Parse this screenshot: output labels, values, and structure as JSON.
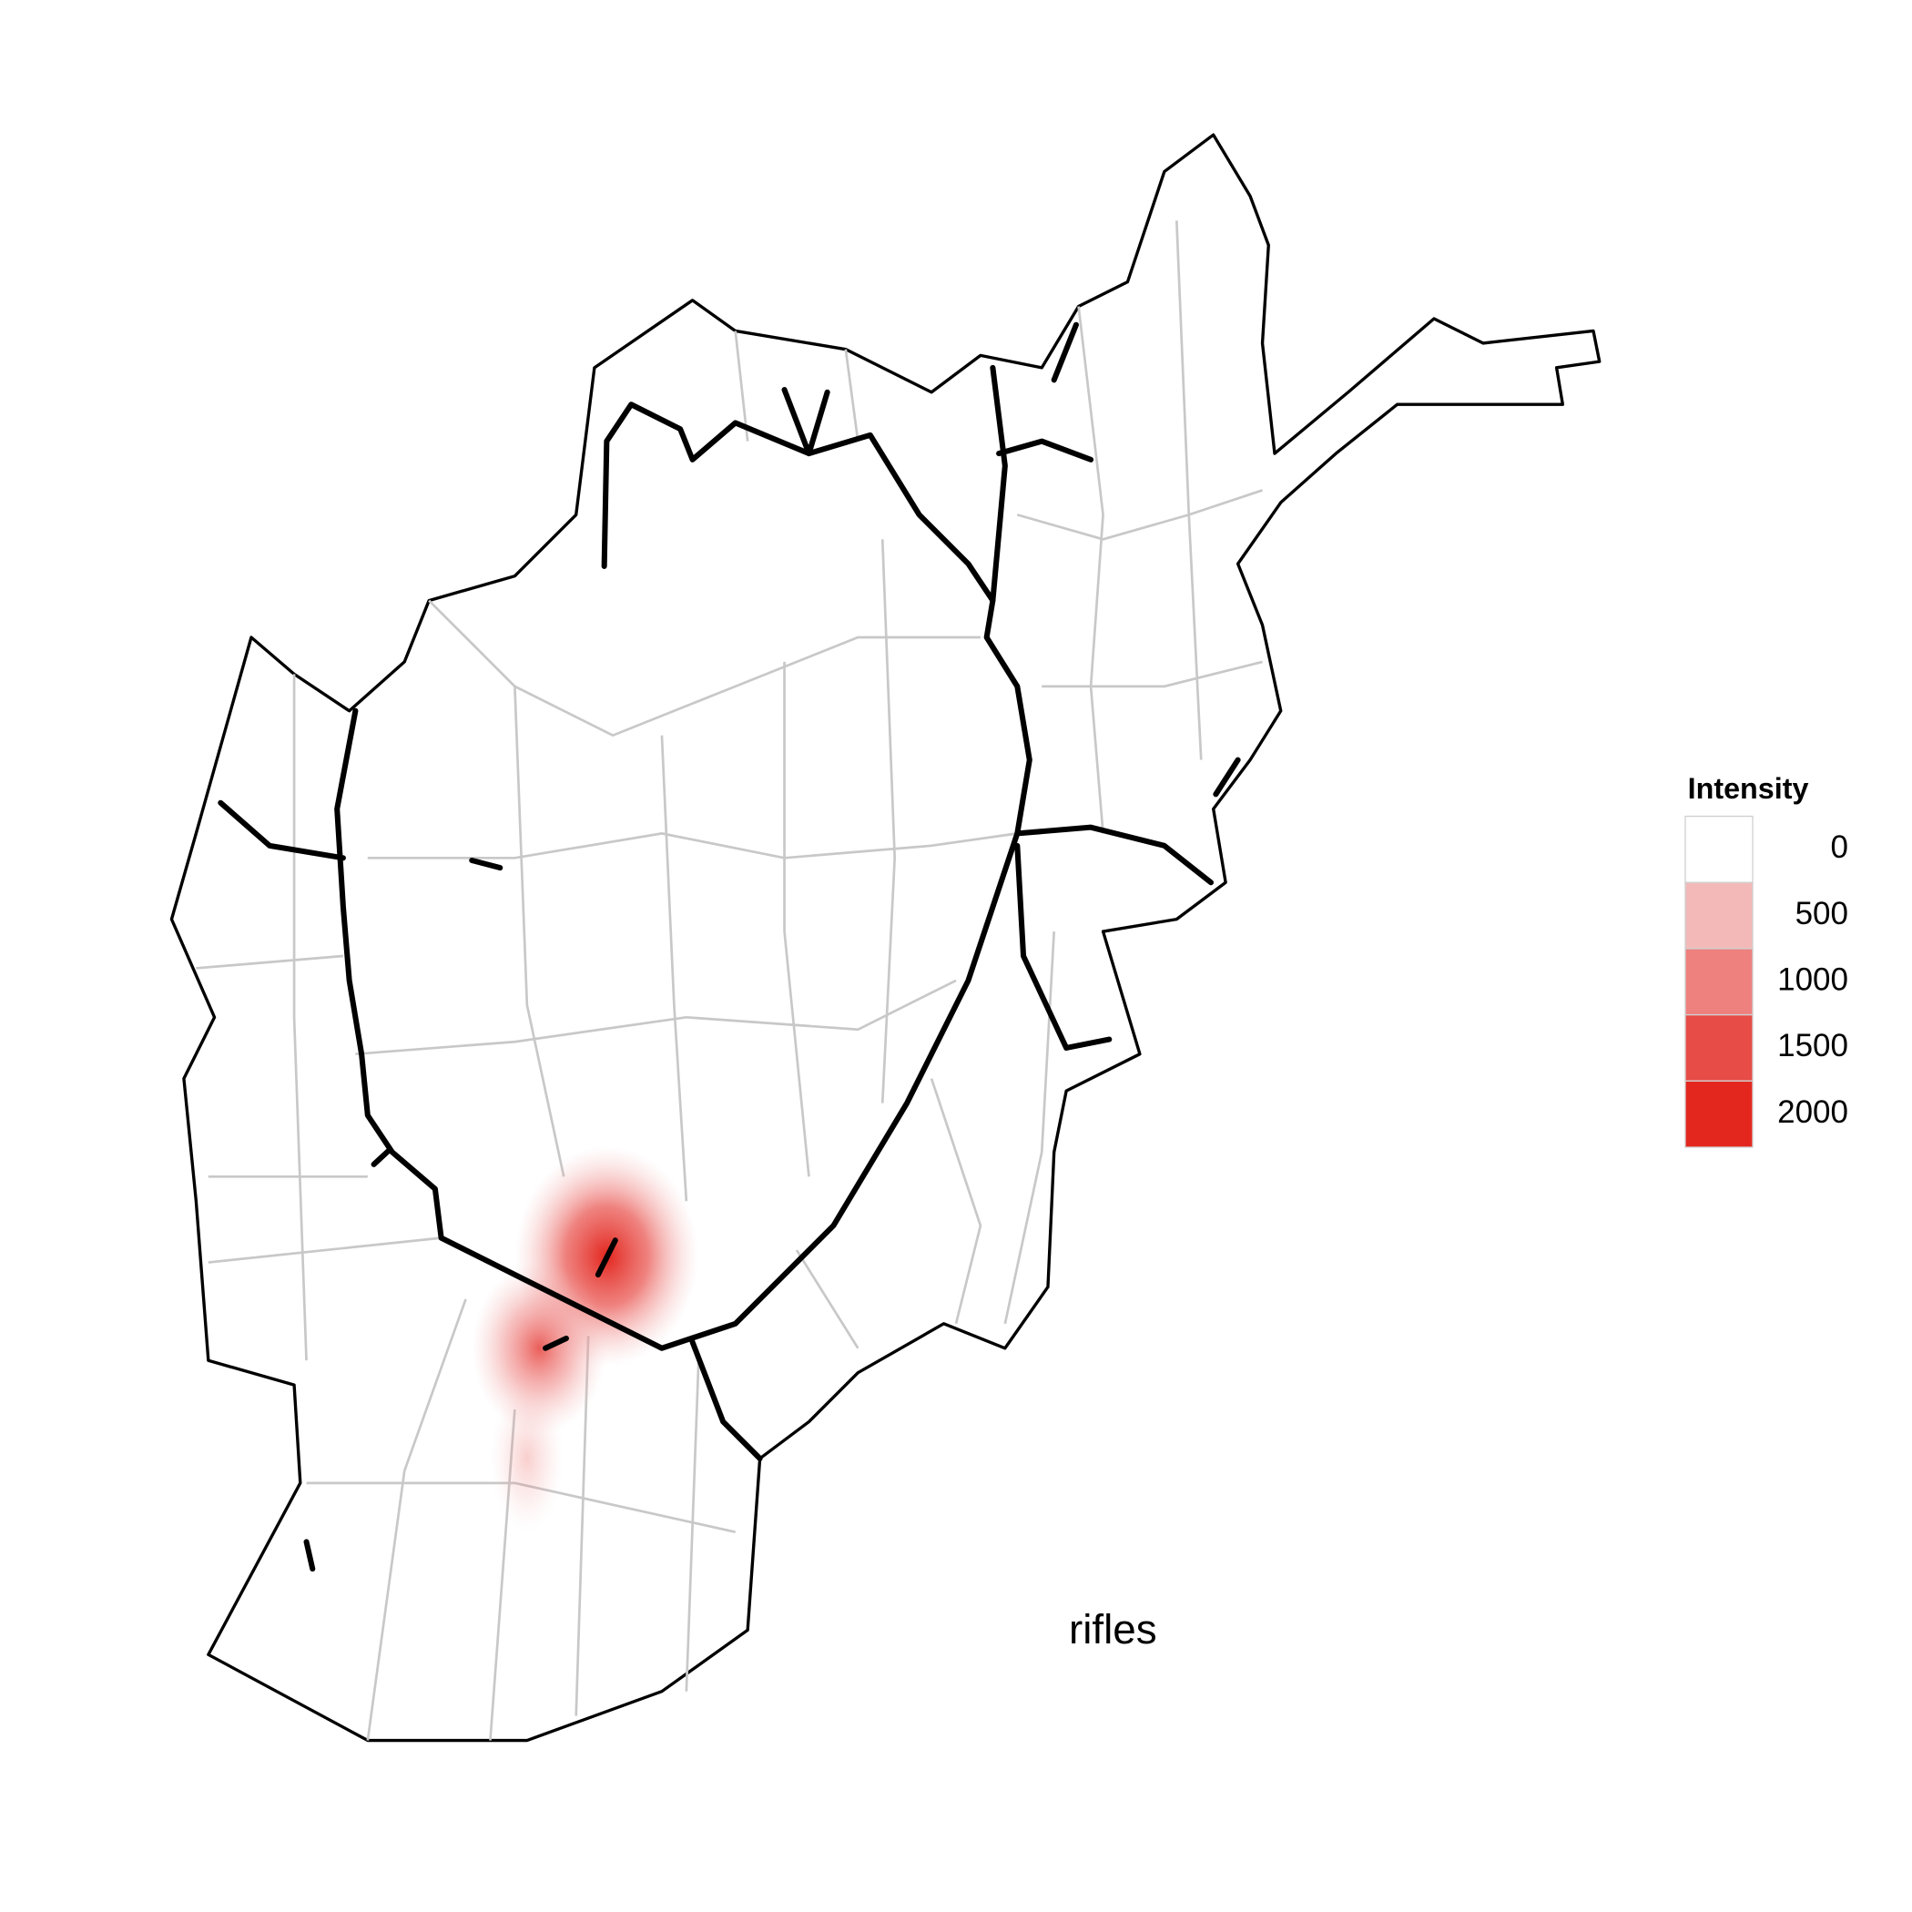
{
  "legend": {
    "title": "Intensity",
    "items": [
      {
        "value": 0,
        "color": "#ffffff"
      },
      {
        "value": 500,
        "color": "#f3b9b8"
      },
      {
        "value": 1000,
        "color": "#ee807e"
      },
      {
        "value": 1500,
        "color": "#e84c47"
      },
      {
        "value": 2000,
        "color": "#e3271f"
      }
    ]
  },
  "annotation": "rifles"
}
